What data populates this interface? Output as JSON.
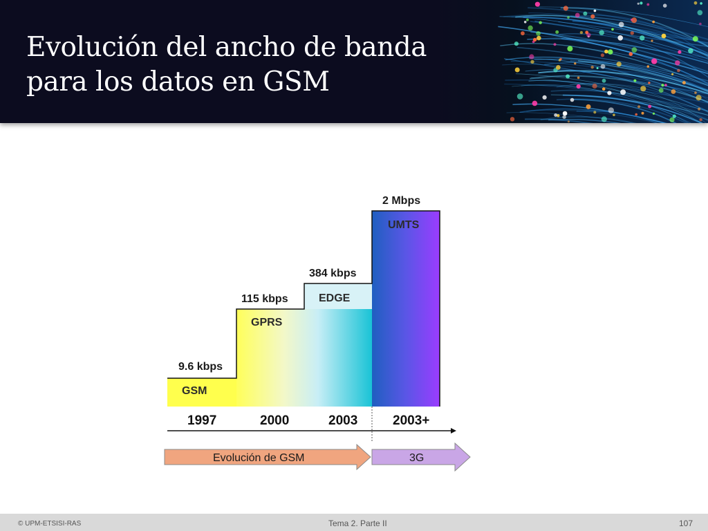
{
  "slide": {
    "title_line1": "Evolución del ancho de banda",
    "title_line2": "para los datos en GSM"
  },
  "chart_data": {
    "type": "bar",
    "categories": [
      "1997",
      "2000",
      "2003",
      "2003+"
    ],
    "technologies": [
      "GSM",
      "GPRS",
      "EDGE",
      "UMTS"
    ],
    "rate_labels": [
      "9.6 kbps",
      "115 kbps",
      "384 kbps",
      "2 Mbps"
    ],
    "values_kbps": [
      9.6,
      115,
      384,
      2000
    ],
    "phases": [
      {
        "label": "Evolución de GSM",
        "color": "#f0a57f"
      },
      {
        "label": "3G",
        "color": "#c9a6e6"
      }
    ],
    "colors": {
      "gsm": "#ffff4d",
      "gprs_edge_start": "#ffff66",
      "edge_end": "#19c3d6",
      "umts_start": "#1f5fc0",
      "umts_end": "#9b3cff"
    }
  },
  "footer": {
    "left": "© UPM-ETSISI-RAS",
    "center": "Tema 2. Parte II",
    "page": "107"
  }
}
